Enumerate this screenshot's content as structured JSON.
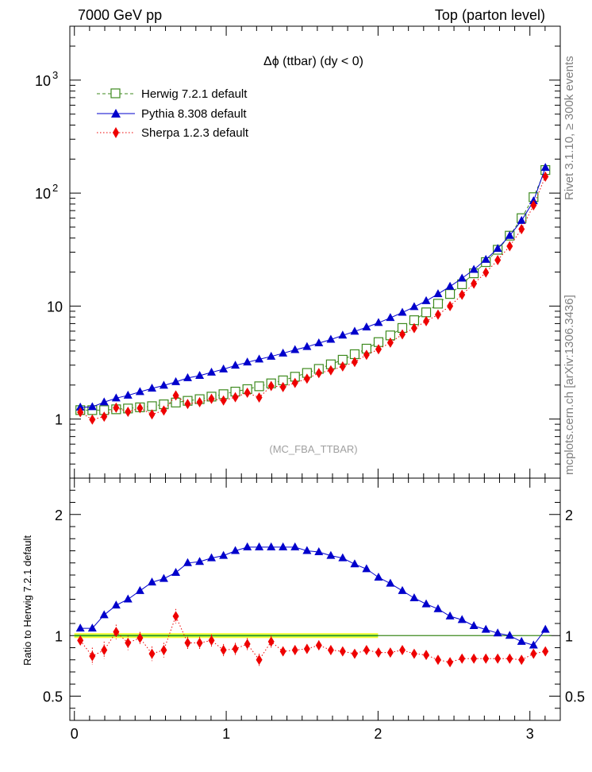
{
  "header": {
    "left": "7000 GeV pp",
    "right": "Top (parton level)"
  },
  "side_text": {
    "rivet": "Rivet 3.1.10, ≥ 300k events",
    "mcplots": "mcplots.cern.ch [arXiv:1306.3436]"
  },
  "colors": {
    "herwig": "#3d8a1e",
    "pythia": "#0000cc",
    "sherpa": "#ee0000",
    "band_outer": "#ffff33",
    "band_inner": "#55dd55"
  },
  "chart_data": [
    {
      "type": "line",
      "title": "Δϕ (ttbar) (dy < 0)",
      "analysis_tag": "(MC_FBA_TTBAR)",
      "y_scale": "log",
      "ylim": [
        0.3,
        3000
      ],
      "xlim": [
        -0.03,
        3.2
      ],
      "y_ticks": [
        {
          "value": 1,
          "label": "1"
        },
        {
          "value": 10,
          "label": "10"
        },
        {
          "value": 100,
          "label": "10",
          "sup": "2"
        },
        {
          "value": 1000,
          "label": "10",
          "sup": "3"
        }
      ],
      "legend_position": "top-left",
      "x": [
        0.039,
        0.118,
        0.196,
        0.275,
        0.353,
        0.432,
        0.511,
        0.589,
        0.668,
        0.746,
        0.825,
        0.903,
        0.982,
        1.06,
        1.139,
        1.217,
        1.296,
        1.374,
        1.453,
        1.532,
        1.61,
        1.689,
        1.767,
        1.846,
        1.924,
        2.003,
        2.081,
        2.16,
        2.238,
        2.317,
        2.395,
        2.474,
        2.553,
        2.631,
        2.71,
        2.788,
        2.867,
        2.945,
        3.024,
        3.102
      ],
      "series": [
        {
          "name": "Herwig 7.2.1 default",
          "marker": "open-square",
          "line": "dashed",
          "values": [
            1.2,
            1.2,
            1.2,
            1.22,
            1.24,
            1.27,
            1.3,
            1.35,
            1.4,
            1.45,
            1.5,
            1.58,
            1.66,
            1.75,
            1.84,
            1.95,
            2.07,
            2.2,
            2.37,
            2.56,
            2.78,
            3.05,
            3.35,
            3.75,
            4.2,
            4.8,
            5.5,
            6.4,
            7.5,
            8.8,
            10.5,
            12.8,
            15.6,
            19.5,
            24.5,
            31.5,
            42.0,
            60.0,
            92.0,
            160.0
          ]
        },
        {
          "name": "Pythia 8.308 default",
          "marker": "filled-triangle",
          "line": "solid",
          "values": [
            1.27,
            1.28,
            1.41,
            1.53,
            1.62,
            1.74,
            1.87,
            1.98,
            2.13,
            2.31,
            2.42,
            2.59,
            2.76,
            2.98,
            3.18,
            3.38,
            3.58,
            3.82,
            4.1,
            4.36,
            4.7,
            5.06,
            5.5,
            5.96,
            6.5,
            7.12,
            7.87,
            8.76,
            9.84,
            11.1,
            12.8,
            14.9,
            17.6,
            21.0,
            25.8,
            32.2,
            42.0,
            57.0,
            85.0,
            168.0
          ]
        },
        {
          "name": "Sherpa 1.2.3 default",
          "marker": "filled-diamond",
          "line": "dotted",
          "values": [
            1.15,
            0.99,
            1.05,
            1.26,
            1.16,
            1.25,
            1.1,
            1.19,
            1.62,
            1.36,
            1.41,
            1.51,
            1.46,
            1.56,
            1.71,
            1.55,
            1.96,
            1.92,
            2.09,
            2.28,
            2.55,
            2.7,
            2.92,
            3.2,
            3.7,
            4.15,
            4.75,
            5.62,
            6.38,
            7.35,
            8.4,
            10.0,
            12.6,
            15.8,
            19.8,
            25.5,
            33.9,
            48.0,
            78.0,
            140.0
          ]
        }
      ]
    },
    {
      "type": "line",
      "ylabel": "Ratio to Herwig 7.2.1 default",
      "ylim": [
        0.3,
        2.3
      ],
      "xlim": [
        -0.03,
        3.2
      ],
      "y_ticks": [
        {
          "value": 0.5,
          "label": "0.5"
        },
        {
          "value": 1,
          "label": "1"
        },
        {
          "value": 2,
          "label": "2"
        }
      ],
      "x_ticks": [
        {
          "value": 0,
          "label": "0"
        },
        {
          "value": 1,
          "label": "1"
        },
        {
          "value": 2,
          "label": "2"
        },
        {
          "value": 3,
          "label": "3"
        }
      ],
      "x": [
        0.039,
        0.118,
        0.196,
        0.275,
        0.353,
        0.432,
        0.511,
        0.589,
        0.668,
        0.746,
        0.825,
        0.903,
        0.982,
        1.06,
        1.139,
        1.217,
        1.296,
        1.374,
        1.453,
        1.532,
        1.61,
        1.689,
        1.767,
        1.846,
        1.924,
        2.003,
        2.081,
        2.16,
        2.238,
        2.317,
        2.395,
        2.474,
        2.553,
        2.631,
        2.71,
        2.788,
        2.867,
        2.945,
        3.024,
        3.102
      ],
      "reference": 1.0,
      "series": [
        {
          "name": "Pythia 8.308 default",
          "marker": "filled-triangle",
          "line": "solid",
          "values": [
            1.06,
            1.06,
            1.17,
            1.25,
            1.3,
            1.37,
            1.44,
            1.47,
            1.52,
            1.6,
            1.61,
            1.64,
            1.66,
            1.7,
            1.73,
            1.73,
            1.73,
            1.73,
            1.73,
            1.7,
            1.69,
            1.66,
            1.64,
            1.59,
            1.55,
            1.48,
            1.43,
            1.37,
            1.31,
            1.26,
            1.22,
            1.16,
            1.13,
            1.08,
            1.05,
            1.02,
            1.0,
            0.95,
            0.92,
            1.05
          ]
        },
        {
          "name": "Sherpa 1.2.3 default",
          "marker": "filled-diamond",
          "line": "dotted",
          "values": [
            0.96,
            0.83,
            0.88,
            1.03,
            0.94,
            0.98,
            0.85,
            0.88,
            1.16,
            0.94,
            0.94,
            0.96,
            0.88,
            0.89,
            0.93,
            0.8,
            0.95,
            0.87,
            0.88,
            0.89,
            0.92,
            0.88,
            0.87,
            0.85,
            0.88,
            0.86,
            0.86,
            0.88,
            0.85,
            0.84,
            0.8,
            0.78,
            0.81,
            0.81,
            0.81,
            0.81,
            0.81,
            0.8,
            0.85,
            0.87
          ],
          "errors": [
            0.04,
            0.07,
            0.07,
            0.06,
            0.06,
            0.05,
            0.06,
            0.06,
            0.06,
            0.05,
            0.05,
            0.05,
            0.05,
            0.05,
            0.05,
            0.05,
            0.05,
            0.04,
            0.04,
            0.04,
            0.04,
            0.04,
            0.03,
            0.03,
            0.03,
            0.03,
            0.03,
            0.03,
            0.02,
            0.02,
            0.02,
            0.02,
            0.02,
            0.02,
            0.02,
            0.02,
            0.02,
            0.02,
            0.02,
            0.02
          ]
        }
      ]
    }
  ]
}
